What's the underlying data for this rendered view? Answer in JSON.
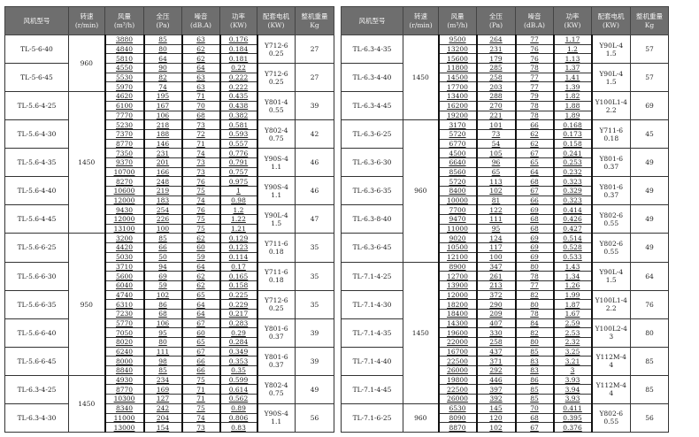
{
  "headers": [
    "风机型号",
    "转速\n(r/min)",
    "风量\n(m³/h)",
    "全压\n(Pa)",
    "噪音\n(dB.A)",
    "功率\n(KW)",
    "配套电机\n(KW)",
    "整机重量\nKg"
  ],
  "tables": [
    {
      "groups": [
        {
          "model": "TL-5-6-40",
          "speed": "960",
          "motor": "Y712-6\n0.25",
          "weight": "27",
          "rows": [
            [
              "3880",
              "85",
              "63",
              "0.176"
            ],
            [
              "4840",
              "80",
              "62",
              "0.184"
            ],
            [
              "5810",
              "64",
              "62",
              "0.181"
            ]
          ]
        },
        {
          "model": "TL-5-6-45",
          "speed": "960",
          "motor": "Y712-6\n0.25",
          "weight": "27",
          "rows": [
            [
              "4550",
              "90",
              "64",
              "0.22"
            ],
            [
              "5530",
              "82",
              "63",
              "0.222"
            ],
            [
              "5970",
              "74",
              "63",
              "0.222"
            ]
          ]
        },
        {
          "model": "TL-5.6-4-25",
          "speed": "1450",
          "motor": "Y801-4\n0.55",
          "weight": "39",
          "rows": [
            [
              "4620",
              "195",
              "71",
              "0.435"
            ],
            [
              "6100",
              "167",
              "70",
              "0.438"
            ],
            [
              "7770",
              "106",
              "68",
              "0.382"
            ]
          ]
        },
        {
          "model": "TL-5.6-4-30",
          "speed": "1450",
          "motor": "Y802-4\n0.75",
          "weight": "42",
          "rows": [
            [
              "5230",
              "218",
              "73",
              "0.581"
            ],
            [
              "7370",
              "188",
              "72",
              "0.593"
            ],
            [
              "8770",
              "146",
              "71",
              "0.557"
            ]
          ]
        },
        {
          "model": "TL-5.6-4-35",
          "speed": "1450",
          "motor": "Y90S-4\n1.1",
          "weight": "46",
          "rows": [
            [
              "7350",
              "231",
              "74",
              "0.776"
            ],
            [
              "9370",
              "201",
              "73",
              "0.791"
            ],
            [
              "10700",
              "166",
              "73",
              "0.757"
            ]
          ]
        },
        {
          "model": "TL-5.6-4-40",
          "speed": "1450",
          "motor": "Y90S-4\n1.1",
          "weight": "46",
          "rows": [
            [
              "8270",
              "248",
              "76",
              "0.975"
            ],
            [
              "10600",
              "219",
              "75",
              "1"
            ],
            [
              "12000",
              "183",
              "74",
              "0.98"
            ]
          ]
        },
        {
          "model": "TL-5.6-4-45",
          "speed": "1450",
          "motor": "Y90L-4\n1.5",
          "weight": "47",
          "rows": [
            [
              "9430",
              "254",
              "76",
              "1.2"
            ],
            [
              "12000",
              "226",
              "75",
              "1.22"
            ],
            [
              "13100",
              "100",
              "75",
              "1.21"
            ]
          ]
        },
        {
          "model": "TL-5.6-6-25",
          "speed": "950",
          "motor": "Y711-6\n0.18",
          "weight": "35",
          "rows": [
            [
              "3200",
              "85",
              "62",
              "0.129"
            ],
            [
              "4420",
              "66",
              "60",
              "0.123"
            ],
            [
              "5030",
              "50",
              "59",
              "0.114"
            ]
          ]
        },
        {
          "model": "TL-5.6-6-30",
          "speed": "950",
          "motor": "Y711-6\n0.18",
          "weight": "35",
          "rows": [
            [
              "3710",
              "94",
              "64",
              "0.17"
            ],
            [
              "5600",
              "69",
              "62",
              "0.165"
            ],
            [
              "6040",
              "59",
              "62",
              "0.158"
            ]
          ]
        },
        {
          "model": "TL-5.6-6-35",
          "speed": "950",
          "motor": "Y712-6\n0.25",
          "weight": "35",
          "rows": [
            [
              "4740",
              "102",
              "65",
              "0.225"
            ],
            [
              "6310",
              "86",
              "64",
              "0.229"
            ],
            [
              "7230",
              "68",
              "64",
              "0.217"
            ]
          ]
        },
        {
          "model": "TL-5.6-6-40",
          "speed": "950",
          "motor": "Y801-6\n0.37",
          "weight": "39",
          "rows": [
            [
              "5770",
              "106",
              "67",
              "0.283"
            ],
            [
              "7050",
              "95",
              "60",
              "0.29"
            ],
            [
              "8020",
              "80",
              "65",
              "0.284"
            ]
          ]
        },
        {
          "model": "TL-5.6-6-45",
          "speed": "950",
          "motor": "Y801-6\n0.37",
          "weight": "39",
          "rows": [
            [
              "6240",
              "111",
              "67",
              "0.349"
            ],
            [
              "8000",
              "98",
              "66",
              "0.353"
            ],
            [
              "8840",
              "85",
              "66",
              "0.35"
            ]
          ]
        },
        {
          "model": "TL-6.3-4-25",
          "speed": "1450",
          "motor": "Y802-4\n0.75",
          "weight": "49",
          "rows": [
            [
              "4930",
              "234",
              "75",
              "0.599"
            ],
            [
              "8770",
              "169",
              "71",
              "0.614"
            ],
            [
              "10300",
              "127",
              "71",
              "0.562"
            ]
          ]
        },
        {
          "model": "TL-6.3-4-30",
          "speed": "1450",
          "motor": "Y90S-4\n1.1",
          "weight": "56",
          "rows": [
            [
              "8340",
              "242",
              "75",
              "0.89"
            ],
            [
              "11000",
              "204",
              "74",
              "0.806"
            ],
            [
              "13000",
              "154",
              "73",
              "0.83"
            ]
          ]
        }
      ]
    },
    {
      "groups": [
        {
          "model": "TL-6.3-4-35",
          "speed": "1450",
          "motor": "Y90L-4\n1.5",
          "weight": "57",
          "rows": [
            [
              "9500",
              "264",
              "77",
              "1.17"
            ],
            [
              "13200",
              "231",
              "76",
              "1.2"
            ],
            [
              "15600",
              "179",
              "76",
              "1.13"
            ]
          ]
        },
        {
          "model": "TL-6.3-4-40",
          "speed": "1450",
          "motor": "Y90L-4\n1.5",
          "weight": "57",
          "rows": [
            [
              "11800",
              "285",
              "78",
              "1.37"
            ],
            [
              "14500",
              "258",
              "77",
              "1.41"
            ],
            [
              "17700",
              "203",
              "77",
              "1.39"
            ]
          ]
        },
        {
          "model": "TL-6.3-4-45",
          "speed": "1450",
          "motor": "Y100L1-4\n2.2",
          "weight": "69",
          "rows": [
            [
              "13400",
              "288",
              "79",
              "1.82"
            ],
            [
              "16200",
              "270",
              "78",
              "1.88"
            ],
            [
              "19200",
              "221",
              "78",
              "1.89"
            ]
          ]
        },
        {
          "model": "TL-6.3-6-25",
          "speed": "960",
          "motor": "Y711-6\n0.18",
          "weight": "45",
          "rows": [
            [
              "3170",
              "101",
              "66",
              "0.168"
            ],
            [
              "5720",
              "73",
              "62",
              "0.173"
            ],
            [
              "6770",
              "54",
              "62",
              "0.158"
            ]
          ]
        },
        {
          "model": "TL-6.3-6-30",
          "speed": "960",
          "motor": "Y801-6\n0.37",
          "weight": "49",
          "rows": [
            [
              "4500",
              "105",
              "67",
              "0.241"
            ],
            [
              "6640",
              "96",
              "65",
              "0.253"
            ],
            [
              "8560",
              "65",
              "64",
              "0.232"
            ]
          ]
        },
        {
          "model": "TL-6.3-6-35",
          "speed": "960",
          "motor": "Y801-6\n0.37",
          "weight": "49",
          "rows": [
            [
              "5720",
              "113",
              "68",
              "0.323"
            ],
            [
              "8400",
              "102",
              "67",
              "0.329"
            ],
            [
              "10000",
              "81",
              "66",
              "0.323"
            ]
          ]
        },
        {
          "model": "TL-6.3-8-40",
          "speed": "960",
          "motor": "Y802-6\n0.55",
          "weight": "49",
          "rows": [
            [
              "7700",
              "122",
              "69",
              "0.414"
            ],
            [
              "9470",
              "111",
              "68",
              "0.426"
            ],
            [
              "11000",
              "95",
              "68",
              "0.427"
            ]
          ]
        },
        {
          "model": "TL-6.3-6-45",
          "speed": "960",
          "motor": "Y802-6\n0.55",
          "weight": "49",
          "rows": [
            [
              "9020",
              "124",
              "69",
              "0.514"
            ],
            [
              "10500",
              "117",
              "69",
              "0.528"
            ],
            [
              "12100",
              "100",
              "69",
              "0.533"
            ]
          ]
        },
        {
          "model": "TL-7.1-4-25",
          "speed": "1450",
          "motor": "Y90L-4\n1.5",
          "weight": "64",
          "rows": [
            [
              "8900",
              "347",
              "80",
              "1.43"
            ],
            [
              "12700",
              "261",
              "78",
              "1.34"
            ],
            [
              "13900",
              "213",
              "77",
              "1.26"
            ]
          ]
        },
        {
          "model": "TL-7.1-4-30",
          "speed": "1450",
          "motor": "Y100L1-4\n2.2",
          "weight": "76",
          "rows": [
            [
              "12000",
              "372",
              "82",
              "1.99"
            ],
            [
              "18200",
              "290",
              "80",
              "1.87"
            ],
            [
              "18400",
              "209",
              "78",
              "1.67"
            ]
          ]
        },
        {
          "model": "TL-7.1-4-35",
          "speed": "1450",
          "motor": "Y100L2-4\n3",
          "weight": "80",
          "rows": [
            [
              "14300",
              "407",
              "84",
              "2.59"
            ],
            [
              "19600",
              "330",
              "82",
              "2.53"
            ],
            [
              "22000",
              "258",
              "80",
              "2.32"
            ]
          ]
        },
        {
          "model": "TL-7.1-4-40",
          "speed": "1450",
          "motor": "Y112M-4\n4",
          "weight": "85",
          "rows": [
            [
              "16700",
              "437",
              "85",
              "3.25"
            ],
            [
              "22500",
              "371",
              "83",
              "3.21"
            ],
            [
              "26000",
              "292",
              "83",
              "3"
            ]
          ]
        },
        {
          "model": "TL-7.1-4-45",
          "speed": "1450",
          "motor": "Y112M-4\n4",
          "weight": "85",
          "rows": [
            [
              "19800",
              "446",
              "86",
              "3.93"
            ],
            [
              "22500",
              "397",
              "85",
              "3.94"
            ],
            [
              "26000",
              "392",
              "85",
              "3.93"
            ]
          ]
        },
        {
          "model": "TL-7.1-6-25",
          "speed": "960",
          "motor": "Y802-6\n0.55",
          "weight": "56",
          "rows": [
            [
              "6530",
              "145",
              "70",
              "0.411"
            ],
            [
              "8090",
              "120",
              "68",
              "0.395"
            ],
            [
              "8870",
              "102",
              "67",
              "0.376"
            ]
          ]
        }
      ]
    }
  ]
}
